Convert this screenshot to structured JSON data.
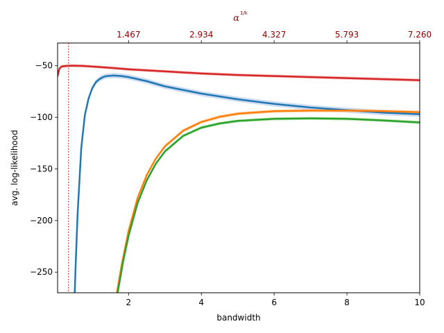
{
  "chart_data": {
    "type": "line",
    "xlabel": "bandwidth",
    "ylabel": "avg. log-likelihood",
    "xlim": [
      0.05,
      10
    ],
    "ylim": [
      -270,
      -28
    ],
    "xticks": [
      2,
      4,
      6,
      8,
      10
    ],
    "yticks": [
      -250,
      -200,
      -150,
      -100,
      -50
    ],
    "top_axis": {
      "label": "α^(1/k)",
      "label_base": "α",
      "label_sup": "1/k",
      "ticks": [
        {
          "x": 2,
          "label": "1.467"
        },
        {
          "x": 4,
          "label": "2.934"
        },
        {
          "x": 6,
          "label": "4.327"
        },
        {
          "x": 8,
          "label": "5.793"
        },
        {
          "x": 10,
          "label": "7.260"
        }
      ],
      "color": "#8b0000"
    },
    "vline": {
      "x": 0.35,
      "color": "#d62728",
      "style": "dotted"
    },
    "series": [
      {
        "color": "#d62728",
        "band_color": "#f4a0a0",
        "x": [
          0.05,
          0.1,
          0.15,
          0.2,
          0.3,
          0.4,
          0.5,
          0.75,
          1.0,
          1.5,
          2,
          3,
          4,
          5,
          6,
          7,
          8,
          9,
          10
        ],
        "y": [
          -60,
          -53,
          -51,
          -50.5,
          -50.2,
          -50,
          -50,
          -50.2,
          -50.8,
          -52,
          -53.5,
          -55.5,
          -57.5,
          -59,
          -60,
          -61,
          -62,
          -63,
          -64
        ],
        "band": 1.5
      },
      {
        "color": "#1f77b4",
        "band_color": "#aec7e8",
        "x": [
          0.52,
          0.55,
          0.6,
          0.7,
          0.8,
          0.9,
          1.0,
          1.1,
          1.2,
          1.3,
          1.4,
          1.6,
          1.8,
          2.0,
          2.5,
          3,
          4,
          5,
          6,
          7,
          8,
          9,
          10
        ],
        "y": [
          -270,
          -240,
          -193,
          -130,
          -98,
          -82,
          -72,
          -66,
          -63,
          -61,
          -60,
          -59.5,
          -60,
          -61,
          -65,
          -70,
          -77,
          -82.5,
          -87,
          -90.5,
          -93,
          -95.5,
          -97
        ],
        "band": 2.5
      },
      {
        "color": "#ff7f0e",
        "band_color": "#ffbb78",
        "x": [
          1.68,
          1.8,
          2.0,
          2.25,
          2.5,
          2.75,
          3.0,
          3.5,
          4.0,
          4.5,
          5,
          6,
          7,
          8,
          9,
          10
        ],
        "y": [
          -270,
          -245,
          -210,
          -178,
          -156,
          -140,
          -128,
          -113,
          -104.5,
          -99.5,
          -96.5,
          -94,
          -93.5,
          -93.5,
          -94,
          -95
        ],
        "band": 1.5
      },
      {
        "color": "#2ca02c",
        "band_color": "#98df8a",
        "x": [
          1.7,
          1.85,
          2.0,
          2.25,
          2.5,
          2.75,
          3.0,
          3.5,
          4.0,
          4.5,
          5,
          6,
          7,
          8,
          9,
          10
        ],
        "y": [
          -270,
          -240,
          -215,
          -183,
          -161,
          -145,
          -133,
          -118,
          -110,
          -106,
          -103.5,
          -101.5,
          -101,
          -101.5,
          -103,
          -105
        ],
        "band": 1.5
      }
    ]
  }
}
